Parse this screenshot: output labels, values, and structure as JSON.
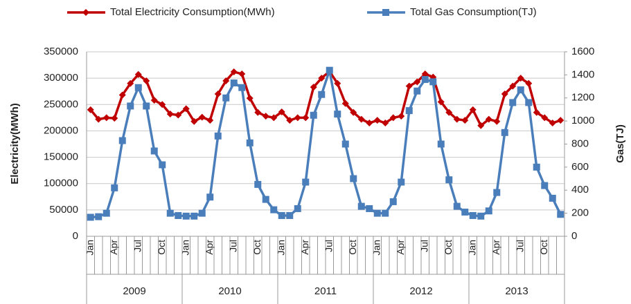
{
  "chart_data": {
    "type": "line",
    "y_label": "Electricity(MWh)",
    "y2_label": "Gas(TJ)",
    "categories": [
      "Jan",
      null,
      null,
      "Apr",
      null,
      null,
      "Jul",
      null,
      null,
      "Oct",
      null,
      null,
      "Jan",
      null,
      null,
      "Apr",
      null,
      null,
      "Jul",
      null,
      null,
      "Oct",
      null,
      null,
      "Jan",
      null,
      null,
      "Apr",
      null,
      null,
      "Jul",
      null,
      null,
      "Oct",
      null,
      null,
      "Jan",
      null,
      null,
      "Apr",
      null,
      null,
      "Jul",
      null,
      null,
      "Oct",
      null,
      null,
      "Jan",
      null,
      null,
      "Apr",
      null,
      null,
      "Jul",
      null,
      null,
      "Oct",
      null,
      null
    ],
    "years": [
      "2009",
      "2010",
      "2011",
      "2012",
      "2013"
    ],
    "series": [
      {
        "name": "Total Electricity Consumption(MWh)",
        "color": "#c00000",
        "marker": "diamond",
        "values": [
          240000,
          222000,
          225000,
          224000,
          268000,
          290000,
          307000,
          295000,
          258000,
          250000,
          232000,
          230000,
          242000,
          218000,
          226000,
          220000,
          270000,
          295000,
          312000,
          308000,
          262000,
          235000,
          228000,
          225000,
          236000,
          220000,
          225000,
          225000,
          283000,
          300000,
          313000,
          290000,
          252000,
          235000,
          222000,
          215000,
          220000,
          215000,
          225000,
          228000,
          285000,
          293000,
          308000,
          302000,
          255000,
          235000,
          222000,
          220000,
          240000,
          210000,
          222000,
          218000,
          270000,
          285000,
          300000,
          290000,
          235000,
          225000,
          215000,
          220000
        ]
      },
      {
        "name": "Total Gas Consumption(TJ)",
        "color": "#4a7ebb",
        "marker": "square",
        "axis": "y2",
        "values": [
          165,
          170,
          200,
          420,
          830,
          1130,
          1290,
          1130,
          740,
          620,
          200,
          180,
          175,
          175,
          200,
          340,
          870,
          1200,
          1330,
          1290,
          810,
          450,
          320,
          230,
          180,
          180,
          240,
          470,
          1050,
          1230,
          1440,
          1060,
          800,
          500,
          260,
          240,
          200,
          200,
          300,
          470,
          1090,
          1260,
          1360,
          1340,
          800,
          490,
          260,
          210,
          180,
          175,
          220,
          380,
          900,
          1160,
          1270,
          1160,
          600,
          440,
          330,
          190
        ]
      }
    ],
    "ylim": [
      0,
      350000
    ],
    "yticks": [
      0,
      50000,
      100000,
      150000,
      200000,
      250000,
      300000,
      350000
    ],
    "y2lim": [
      0,
      1600
    ],
    "y2ticks": [
      0,
      200,
      400,
      600,
      800,
      1000,
      1200,
      1400,
      1600
    ],
    "grid": true
  }
}
